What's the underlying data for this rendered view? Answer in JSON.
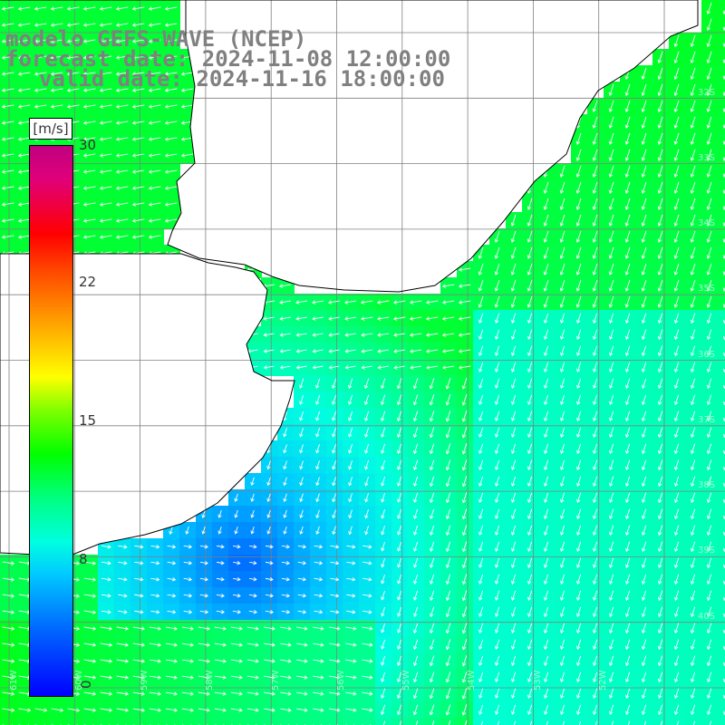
{
  "title": {
    "model": "modelo GEFS-WAVE (NCEP)",
    "forecast": "forecast date: 2024-11-08 12:00:00",
    "valid": "valid date: 2024-11-16 18:00:00"
  },
  "colorbar": {
    "unit": "[m/s]",
    "ticks": [
      "30",
      "22",
      "15",
      "8",
      "0"
    ],
    "range": [
      0,
      30
    ],
    "colors": [
      "#0000ff",
      "#0066ff",
      "#00c8ff",
      "#00ffe0",
      "#00ff80",
      "#00ff00",
      "#80ff00",
      "#ffff00",
      "#ffa000",
      "#ff4000",
      "#ff0000",
      "#e0007a",
      "#c00080"
    ]
  },
  "grid": {
    "lat_labels": [
      "32S",
      "33S",
      "34S",
      "35S",
      "36S",
      "37S",
      "38S",
      "39S",
      "40S"
    ],
    "lon_labels": [
      "61W",
      "60W",
      "59W",
      "58W",
      "57W",
      "56W",
      "55W",
      "54W",
      "53W",
      "52W"
    ]
  },
  "colors": {
    "land": "#ffffff",
    "coast": "#000000",
    "grid": "#808080",
    "arrows": "#ffffff",
    "text": "#808080"
  }
}
